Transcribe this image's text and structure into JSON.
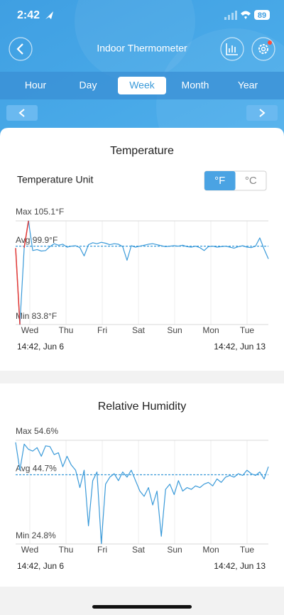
{
  "status_bar": {
    "time": "2:42",
    "battery": "89"
  },
  "header": {
    "title": "Indoor Thermometer"
  },
  "tabs": {
    "items": [
      "Hour",
      "Day",
      "Week",
      "Month",
      "Year"
    ],
    "selected": 2
  },
  "temperature_unit": {
    "label": "Temperature Unit",
    "options": [
      "°F",
      "°C"
    ],
    "selected": 0
  },
  "charts": [
    {
      "type": "line",
      "title": "Temperature",
      "color": "#3a9ad9",
      "alert_color": "#e53935",
      "max": {
        "value": 105.1,
        "label": "Max 105.1°F"
      },
      "avg": {
        "value": 99.9,
        "label": "Avg 99.9°F"
      },
      "min": {
        "value": 83.8,
        "label": "Min 83.8°F"
      },
      "categories": [
        "Wed",
        "Thu",
        "Fri",
        "Sat",
        "Sun",
        "Mon",
        "Tue"
      ],
      "start": "14:42,  Jun 6",
      "end": "14:42,  Jun 13",
      "values": [
        99.5,
        83.8,
        99.6,
        105.1,
        99.0,
        99.2,
        98.9,
        99.0,
        99.8,
        100.4,
        100.1,
        100.3,
        99.7,
        99.9,
        100.0,
        99.6,
        97.9,
        100.2,
        100.6,
        100.4,
        100.7,
        100.5,
        100.2,
        100.4,
        100.3,
        99.8,
        97.0,
        100.0,
        99.7,
        99.9,
        100.1,
        100.3,
        100.4,
        100.2,
        100.0,
        99.8,
        99.9,
        100.0,
        99.9,
        100.1,
        99.8,
        99.7,
        99.9,
        99.6,
        99.0,
        99.8,
        99.9,
        99.7,
        99.8,
        99.9,
        99.7,
        99.5,
        99.8,
        100.0,
        99.7,
        99.6,
        99.9,
        101.6,
        99.3,
        97.3
      ]
    },
    {
      "type": "line",
      "title": "Relative Humidity",
      "color": "#3a9ad9",
      "alert_color": "#e53935",
      "max": {
        "value": 54.6,
        "label": "Max 54.6%"
      },
      "avg": {
        "value": 44.7,
        "label": "Avg 44.7%"
      },
      "min": {
        "value": 24.8,
        "label": "Min 24.8%"
      },
      "categories": [
        "Wed",
        "Thu",
        "Fri",
        "Sat",
        "Sun",
        "Mon",
        "Tue"
      ],
      "start": "14:42,  Jun 6",
      "end": "14:42,  Jun 13",
      "values": [
        54.0,
        46.0,
        53.5,
        52.0,
        51.5,
        52.5,
        50.0,
        53.0,
        52.8,
        50.5,
        51.0,
        47.0,
        50.0,
        47.5,
        46.0,
        41.0,
        46.0,
        30.0,
        43.0,
        45.5,
        24.9,
        42.0,
        44.0,
        45.0,
        43.0,
        45.5,
        44.0,
        46.0,
        43.0,
        40.0,
        38.5,
        41.0,
        36.0,
        40.0,
        27.0,
        40.5,
        42.0,
        39.0,
        43.0,
        40.0,
        41.0,
        40.5,
        41.5,
        41.0,
        42.0,
        42.5,
        41.5,
        43.5,
        42.5,
        44.0,
        44.5,
        44.0,
        45.0,
        44.5,
        46.0,
        45.0,
        44.5,
        45.5,
        43.5,
        47.0
      ]
    }
  ]
}
